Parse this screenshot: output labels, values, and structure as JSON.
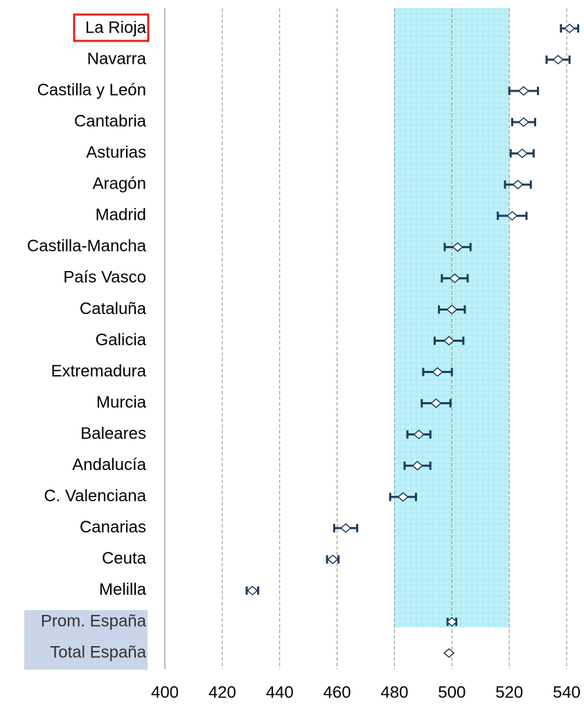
{
  "chart_data": {
    "type": "dot_error",
    "categories": [
      "La Rioja",
      "Navarra",
      "Castilla y León",
      "Cantabria",
      "Asturias",
      "Aragón",
      "Madrid",
      "Castilla-Mancha",
      "País Vasco",
      "Cataluña",
      "Galicia",
      "Extremadura",
      "Murcia",
      "Baleares",
      "Andalucía",
      "C. Valenciana",
      "Canarias",
      "Ceuta",
      "Melilla",
      "Prom. España",
      "Total España"
    ],
    "values": [
      541,
      537,
      525,
      525,
      524.5,
      523,
      521,
      502,
      501,
      500,
      499,
      495,
      494.5,
      488.5,
      488,
      483,
      463,
      458.5,
      430.5,
      500,
      499
    ],
    "errors": [
      3,
      4,
      5,
      4,
      4,
      4.5,
      5,
      4.5,
      4.5,
      4.5,
      5,
      5,
      5,
      4,
      4.5,
      4.5,
      4,
      2,
      2,
      1.5,
      0
    ],
    "color": "#1f3b5c",
    "xlim": [
      400,
      540
    ],
    "xticks": [
      400,
      420,
      440,
      460,
      480,
      500,
      520,
      540
    ],
    "band": [
      480,
      520
    ],
    "band_color": "#b8f0f8",
    "grid": true
  }
}
